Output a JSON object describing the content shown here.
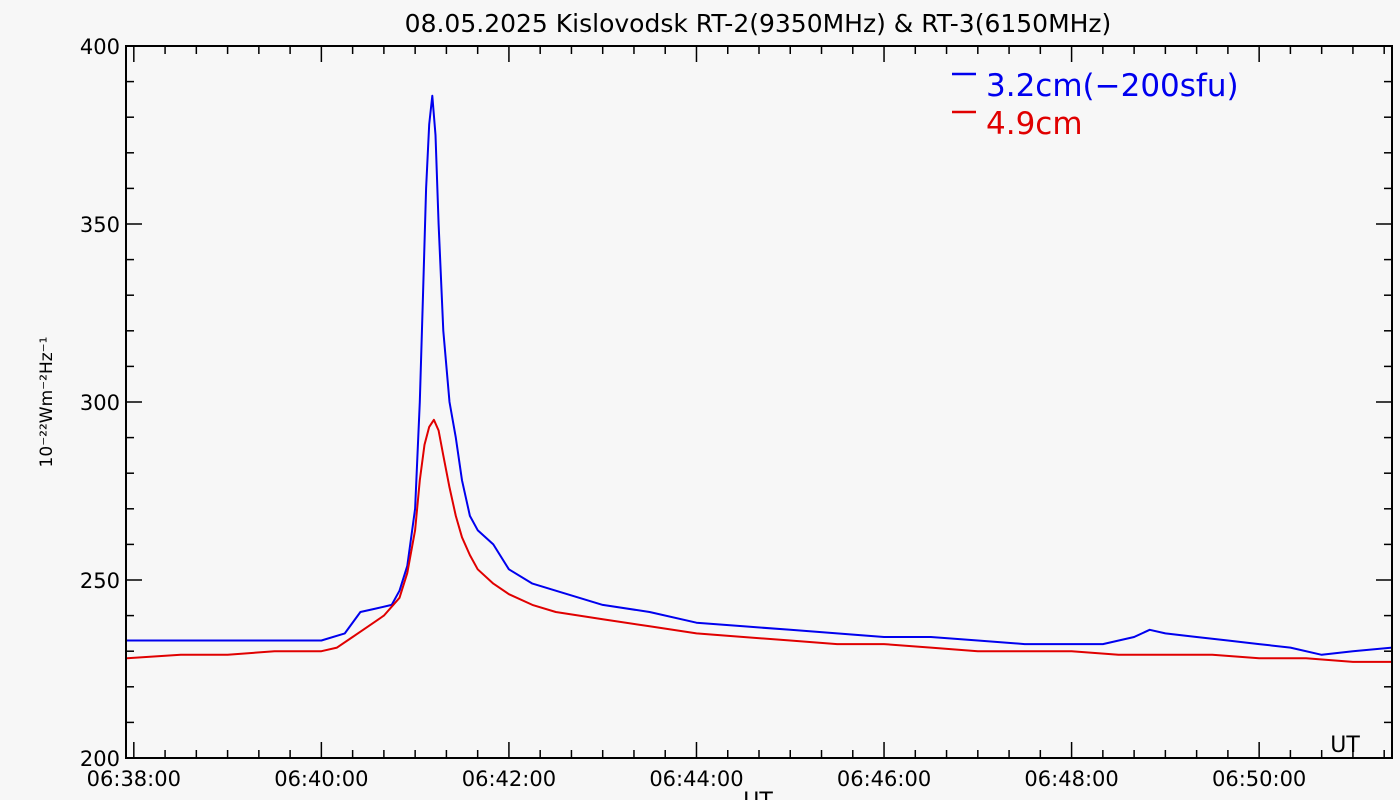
{
  "chart_data": {
    "type": "line",
    "title": "08.05.2025 Kislovodsk RT-2(9350MHz) & RT-3(6150MHz)",
    "xlabel": "UT",
    "ylabel": "10⁻²²Wm⁻²Hz⁻¹",
    "xlim": [
      "06:37:55",
      "06:51:25"
    ],
    "ylim": [
      200,
      400
    ],
    "xticks": [
      "06:38:00",
      "06:40:00",
      "06:42:00",
      "06:44:00",
      "06:46:00",
      "06:48:00",
      "06:50:00"
    ],
    "yticks": [
      200,
      250,
      300,
      350,
      400
    ],
    "corner_label": "UT",
    "legend_position": "top-right",
    "series": [
      {
        "name": "3.2cm(−200sfu)",
        "color": "#0000ee",
        "x": [
          "06:37:55",
          "06:38:30",
          "06:39:00",
          "06:39:30",
          "06:40:00",
          "06:40:15",
          "06:40:25",
          "06:40:35",
          "06:40:45",
          "06:40:50",
          "06:40:55",
          "06:41:00",
          "06:41:03",
          "06:41:05",
          "06:41:07",
          "06:41:09",
          "06:41:11",
          "06:41:13",
          "06:41:15",
          "06:41:18",
          "06:41:22",
          "06:41:26",
          "06:41:30",
          "06:41:35",
          "06:41:40",
          "06:41:50",
          "06:42:00",
          "06:42:15",
          "06:42:30",
          "06:43:00",
          "06:43:30",
          "06:44:00",
          "06:44:30",
          "06:45:00",
          "06:45:30",
          "06:46:00",
          "06:46:30",
          "06:47:00",
          "06:47:30",
          "06:48:00",
          "06:48:20",
          "06:48:40",
          "06:48:50",
          "06:49:00",
          "06:49:20",
          "06:49:40",
          "06:50:00",
          "06:50:20",
          "06:50:40",
          "06:51:00",
          "06:51:25"
        ],
        "values": [
          233,
          233,
          233,
          233,
          233,
          235,
          241,
          242,
          243,
          247,
          254,
          270,
          300,
          330,
          360,
          378,
          386,
          375,
          350,
          320,
          300,
          290,
          278,
          268,
          264,
          260,
          253,
          249,
          247,
          243,
          241,
          238,
          237,
          236,
          235,
          234,
          234,
          233,
          232,
          232,
          232,
          234,
          236,
          235,
          234,
          233,
          232,
          231,
          229,
          230,
          231
        ]
      },
      {
        "name": "4.9cm",
        "color": "#e00000",
        "x": [
          "06:37:55",
          "06:38:30",
          "06:39:00",
          "06:39:30",
          "06:40:00",
          "06:40:10",
          "06:40:20",
          "06:40:30",
          "06:40:40",
          "06:40:50",
          "06:40:55",
          "06:41:00",
          "06:41:03",
          "06:41:06",
          "06:41:09",
          "06:41:12",
          "06:41:15",
          "06:41:18",
          "06:41:22",
          "06:41:26",
          "06:41:30",
          "06:41:35",
          "06:41:40",
          "06:41:50",
          "06:42:00",
          "06:42:15",
          "06:42:30",
          "06:43:00",
          "06:43:30",
          "06:44:00",
          "06:44:30",
          "06:45:00",
          "06:45:30",
          "06:46:00",
          "06:46:30",
          "06:47:00",
          "06:47:30",
          "06:48:00",
          "06:48:30",
          "06:49:00",
          "06:49:30",
          "06:50:00",
          "06:50:30",
          "06:51:00",
          "06:51:25"
        ],
        "values": [
          228,
          229,
          229,
          230,
          230,
          231,
          234,
          237,
          240,
          245,
          252,
          264,
          278,
          288,
          293,
          295,
          292,
          285,
          276,
          268,
          262,
          257,
          253,
          249,
          246,
          243,
          241,
          239,
          237,
          235,
          234,
          233,
          232,
          232,
          231,
          230,
          230,
          230,
          229,
          229,
          229,
          228,
          228,
          227,
          227
        ]
      }
    ]
  }
}
